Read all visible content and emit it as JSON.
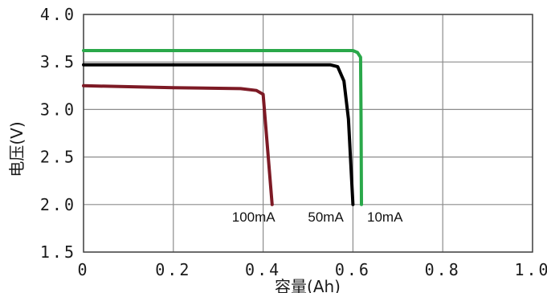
{
  "chart_data": {
    "type": "line",
    "title": "",
    "xlabel": "容量(Ah)",
    "ylabel": "电压(V)",
    "xlim": [
      0,
      1.0
    ],
    "ylim": [
      1.5,
      4.0
    ],
    "grid": true,
    "x_ticks": [
      {
        "value": 0,
        "label": "0"
      },
      {
        "value": 0.2,
        "label": "0.2"
      },
      {
        "value": 0.4,
        "label": "0.4"
      },
      {
        "value": 0.6,
        "label": "0.6"
      },
      {
        "value": 0.8,
        "label": "0.8"
      },
      {
        "value": 1.0,
        "label": "1.0"
      }
    ],
    "y_ticks": [
      {
        "value": 1.5,
        "label": "1.5"
      },
      {
        "value": 2.0,
        "label": "2.0"
      },
      {
        "value": 2.5,
        "label": "2.5"
      },
      {
        "value": 3.0,
        "label": "3.0"
      },
      {
        "value": 3.5,
        "label": "3.5"
      },
      {
        "value": 4.0,
        "label": "4.0"
      }
    ],
    "series": [
      {
        "label": "10mA",
        "color": "#2aa84a",
        "points": [
          [
            0,
            3.62
          ],
          [
            0.3,
            3.62
          ],
          [
            0.6,
            3.62
          ],
          [
            0.61,
            3.6
          ],
          [
            0.617,
            3.55
          ],
          [
            0.618,
            2.9
          ],
          [
            0.619,
            2.0
          ]
        ]
      },
      {
        "label": "50mA",
        "color": "#000000",
        "points": [
          [
            0,
            3.47
          ],
          [
            0.3,
            3.47
          ],
          [
            0.55,
            3.47
          ],
          [
            0.566,
            3.45
          ],
          [
            0.58,
            3.3
          ],
          [
            0.59,
            2.9
          ],
          [
            0.6,
            2.0
          ]
        ]
      },
      {
        "label": "100mA",
        "color": "#7d1a25",
        "points": [
          [
            0,
            3.25
          ],
          [
            0.2,
            3.23
          ],
          [
            0.35,
            3.22
          ],
          [
            0.385,
            3.2
          ],
          [
            0.4,
            3.16
          ],
          [
            0.42,
            2.0
          ]
        ]
      }
    ],
    "annotations": [
      {
        "text": "100mA",
        "x": 0.42,
        "y": 2.0
      },
      {
        "text": "50mA",
        "x": 0.6,
        "y": 2.0
      },
      {
        "text": "10mA",
        "x": 0.619,
        "y": 2.0
      }
    ]
  }
}
